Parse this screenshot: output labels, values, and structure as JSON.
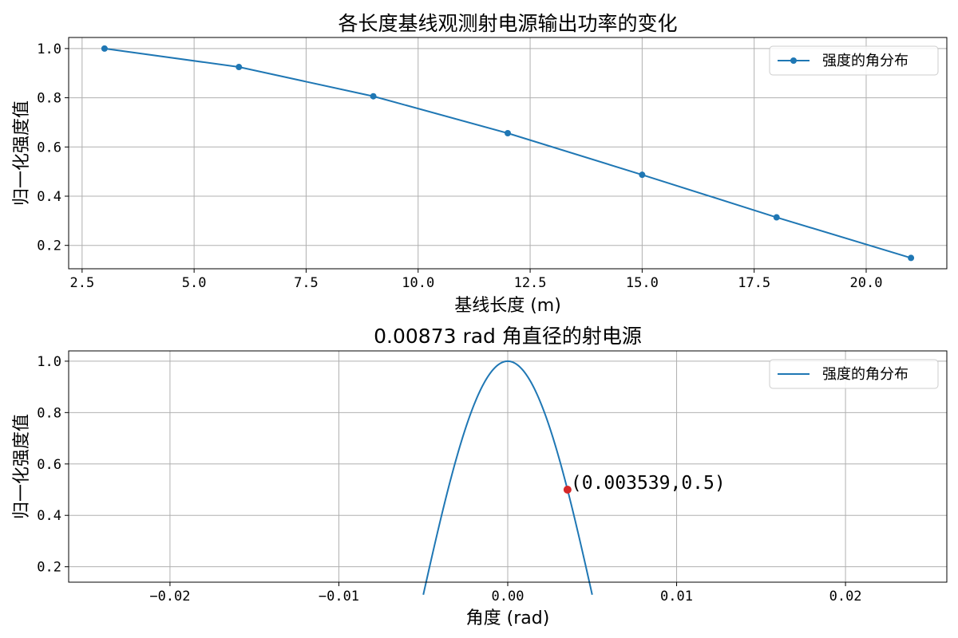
{
  "colors": {
    "series": "#1f77b4",
    "marker": "#d62728",
    "grid": "#b0b0b0"
  },
  "chart_data": [
    {
      "type": "line",
      "title": "各长度基线观测射电源输出功率的变化",
      "xlabel": "基线长度 (m)",
      "ylabel": "归一化强度值",
      "xlim": [
        2.2,
        21.8
      ],
      "ylim": [
        0.105,
        1.045
      ],
      "grid": true,
      "legend_placement": "top-right",
      "xticks": [
        2.5,
        5.0,
        7.5,
        10.0,
        12.5,
        15.0,
        17.5,
        20.0
      ],
      "xtick_labels": [
        "2.5",
        "5.0",
        "7.5",
        "10.0",
        "12.5",
        "15.0",
        "17.5",
        "20.0"
      ],
      "yticks": [
        0.2,
        0.4,
        0.6,
        0.8,
        1.0
      ],
      "ytick_labels": [
        "0.2",
        "0.4",
        "0.6",
        "0.8",
        "1.0"
      ],
      "series": [
        {
          "name": "强度的角分布",
          "markers": true,
          "x": [
            3,
            6,
            9,
            12,
            15,
            18,
            21
          ],
          "y": [
            1.0,
            0.925,
            0.806,
            0.656,
            0.487,
            0.314,
            0.149
          ]
        }
      ]
    },
    {
      "type": "line",
      "title": "0.00873 rad 角直径的射电源",
      "xlabel": "角度 (rad)",
      "ylabel": "归一化强度值",
      "xlim": [
        -0.026,
        0.026
      ],
      "ylim": [
        0.14,
        1.04
      ],
      "grid": true,
      "legend_placement": "top-right",
      "xticks": [
        -0.02,
        -0.01,
        0.0,
        0.01,
        0.02
      ],
      "xtick_labels": [
        "−0.02",
        "−0.01",
        "0.00",
        "0.01",
        "0.02"
      ],
      "yticks": [
        0.2,
        0.4,
        0.6,
        0.8,
        1.0
      ],
      "ytick_labels": [
        "0.2",
        "0.4",
        "0.6",
        "0.8",
        "1.0"
      ],
      "series": [
        {
          "name": "强度的角分布",
          "markers": false,
          "curve": {
            "x_min": -0.005,
            "x_max": 0.005,
            "half_width_at_half_max": 0.003539
          }
        }
      ],
      "annotation": {
        "x": 0.003539,
        "y": 0.5,
        "text": "(0.003539,0.5)"
      }
    }
  ]
}
